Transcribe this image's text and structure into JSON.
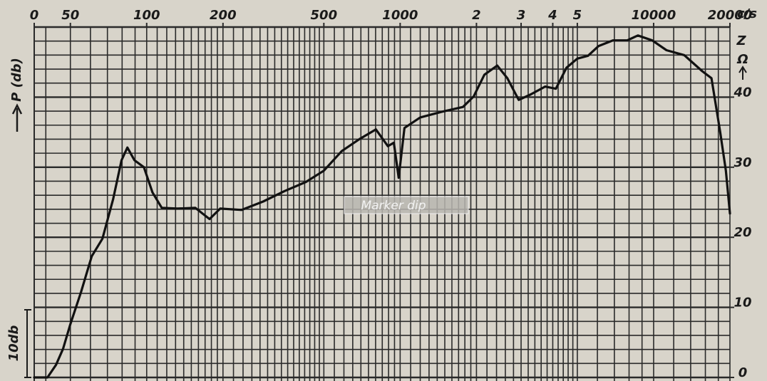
{
  "chart_data": {
    "type": "line",
    "y_label": "P (db)",
    "x_unit": "c/s",
    "scale_label": "10db",
    "annotations": [
      "Z",
      "Ω",
      "Marker dip"
    ],
    "log_x": true,
    "color": "#111111",
    "x": [
      36,
      40.6,
      43.9,
      46.8,
      50,
      55.1,
      60.7,
      66.9,
      73.7,
      79.6,
      83.9,
      89.5,
      97.5,
      105.4,
      114.7,
      132,
      155.5,
      177,
      195,
      237,
      288,
      350,
      425,
      500,
      588,
      690,
      802,
      895,
      944,
      987,
      1040,
      1200,
      1456,
      1770,
      1950,
      2149,
      2416,
      2647,
      2937,
      3277,
      3732,
      4113,
      4532,
      5000,
      5508,
      6069,
      6906,
      7866,
      8670,
      9865,
      11240,
      13210,
      15560,
      16910,
      18290,
      19280,
      20000
    ],
    "values": [
      0,
      0,
      1.8,
      4.1,
      7.6,
      12.2,
      17.3,
      19.8,
      25.4,
      31.0,
      32.8,
      31.0,
      30.0,
      26.4,
      24.2,
      24.1,
      24.2,
      22.6,
      24.1,
      23.9,
      25.1,
      26.6,
      27.9,
      29.5,
      32.3,
      34.0,
      35.4,
      33.0,
      33.5,
      28.5,
      35.6,
      37.1,
      37.9,
      38.6,
      40.1,
      43.2,
      44.5,
      42.7,
      39.6,
      40.4,
      41.5,
      41.2,
      44.2,
      45.5,
      45.9,
      47.3,
      48.1,
      48.1,
      48.8,
      48.1,
      46.7,
      46.0,
      43.7,
      42.7,
      35.1,
      29.5,
      23.4
    ],
    "xlim": [
      36,
      20000
    ],
    "ylim": [
      0,
      50
    ],
    "xticks": [
      {
        "value": 36,
        "label": "0"
      },
      50,
      100,
      200,
      500,
      1000,
      {
        "value": 2000,
        "label": "2"
      },
      {
        "value": 3000,
        "label": "3"
      },
      {
        "value": 4000,
        "label": "4"
      },
      {
        "value": 5000,
        "label": "5"
      },
      10000,
      20000
    ],
    "yticks": [
      0,
      10,
      20,
      30,
      40
    ],
    "grid": true,
    "xgrid": [
      40,
      50,
      60,
      70,
      80,
      90,
      100,
      110,
      120,
      130,
      140,
      150,
      160,
      170,
      180,
      190,
      200,
      220,
      240,
      260,
      280,
      300,
      320,
      340,
      360,
      380,
      400,
      420,
      440,
      460,
      480,
      500,
      550,
      600,
      650,
      700,
      750,
      800,
      850,
      900,
      950,
      1000,
      1100,
      1200,
      1300,
      1400,
      1500,
      1600,
      1700,
      1800,
      1900,
      2000,
      2200,
      2400,
      2600,
      2800,
      3000,
      3200,
      3400,
      3600,
      3800,
      4000,
      4200,
      4400,
      4600,
      4800,
      5000,
      6000,
      7000,
      8000,
      9000,
      10000,
      12000,
      14000,
      16000,
      18000,
      20000
    ],
    "ygrid": [
      0,
      2,
      4,
      6,
      8,
      10,
      12,
      14,
      16,
      18,
      20,
      22,
      24,
      26,
      28,
      30,
      32,
      34,
      36,
      38,
      40,
      42,
      44,
      46,
      48,
      50
    ]
  }
}
